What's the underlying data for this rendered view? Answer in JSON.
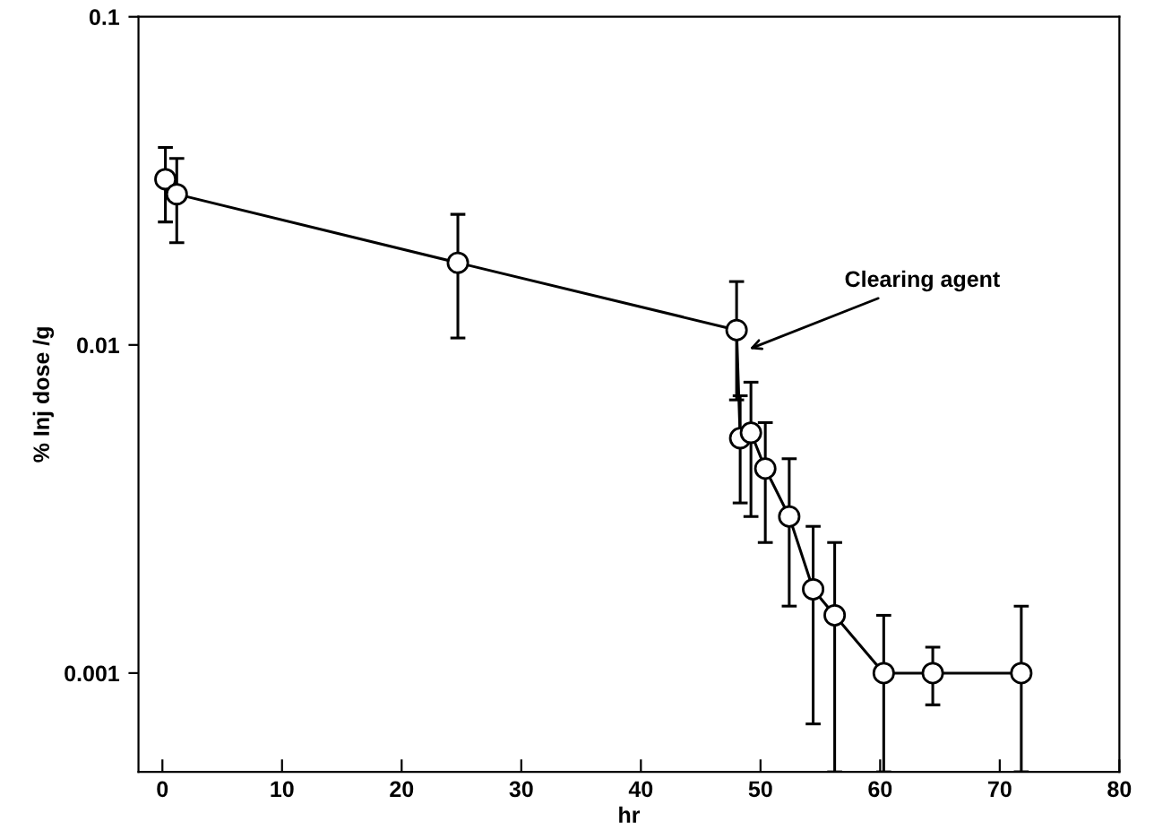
{
  "chart_data": {
    "type": "line",
    "xlabel": "hr",
    "ylabel": "% Inj dose /g",
    "log": "y",
    "marker": "circle",
    "line_style": "solid",
    "grid": false,
    "xlim": [
      -2,
      80
    ],
    "xticks": [
      0,
      10,
      20,
      30,
      40,
      50,
      60,
      70,
      80
    ],
    "ylim": [
      0.0005,
      0.1
    ],
    "yticks": [
      0.001,
      0.01,
      0.1
    ],
    "series": [
      {
        "color": "#000000",
        "x": [
          0.25,
          1.2,
          24.7,
          48.0,
          48.3,
          49.2,
          50.4,
          52.4,
          54.4,
          56.2,
          60.3,
          64.4,
          71.8
        ],
        "values": [
          0.032,
          0.0288,
          0.0178,
          0.0111,
          0.0052,
          0.0054,
          0.0042,
          0.003,
          0.0018,
          0.0015,
          0.001,
          0.001,
          0.001
        ],
        "errors": [
          [
            0.0237,
            0.04
          ],
          [
            0.0205,
            0.037
          ],
          [
            0.0105,
            0.025
          ],
          [
            0.0068,
            0.0156
          ],
          [
            0.0033,
            0.007
          ],
          [
            0.003,
            0.0077
          ],
          [
            0.0025,
            0.0058
          ],
          [
            0.0016,
            0.0045
          ],
          [
            0.0007,
            0.0028
          ],
          [
            0.0005,
            0.0025
          ],
          [
            0.0005,
            0.0015
          ],
          [
            0.0008,
            0.0012
          ],
          [
            0.0005,
            0.0016
          ]
        ]
      }
    ],
    "annotations": [
      {
        "text": "Clearing agent",
        "x": 48.7,
        "y": 0.0096
      }
    ]
  }
}
